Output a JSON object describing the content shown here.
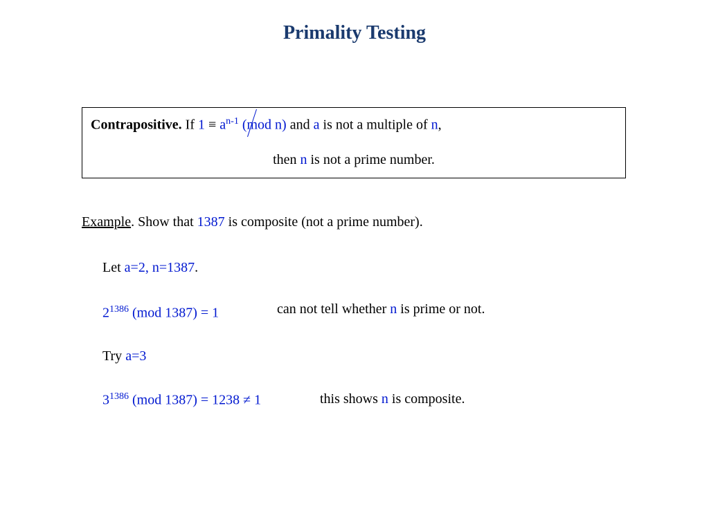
{
  "title": "Primality Testing",
  "box": {
    "bold_label": "Contrapositive.",
    "if_word": " If ",
    "one": "1",
    "equiv": " ≡ ",
    "a": "a",
    "n_minus_1": "n-1",
    "mod_n": " (mod n)",
    "and_text": " and ",
    "a2": "a",
    "rest1": " is not a multiple of ",
    "n": "n",
    "comma": ",",
    "line2_pre": "then ",
    "line2_n": "n",
    "line2_post": " is not a prime number."
  },
  "example": {
    "label": "Example",
    "dot": ".  Show that ",
    "num": "1387",
    "post": " is composite (not a prime number)."
  },
  "let": {
    "pre": "Let ",
    "vars": "a=2, n=1387",
    "dot": "."
  },
  "mod2": {
    "base": "2",
    "exp": "1386",
    "rest": " (mod 1387) = 1"
  },
  "cannot": {
    "pre": "can not tell whether ",
    "n": "n",
    "post": " is prime or not."
  },
  "try": {
    "pre": "Try ",
    "a": "a=3"
  },
  "mod3": {
    "base": "3",
    "exp": "1386",
    "rest": " (mod 1387) = 1238 ≠ 1"
  },
  "shows": {
    "pre": "this shows ",
    "n": "n",
    "post": " is composite."
  },
  "colors": {
    "title": "#1a3a6e",
    "blue": "#0018d0",
    "text": "#000000",
    "bg": "#ffffff"
  }
}
